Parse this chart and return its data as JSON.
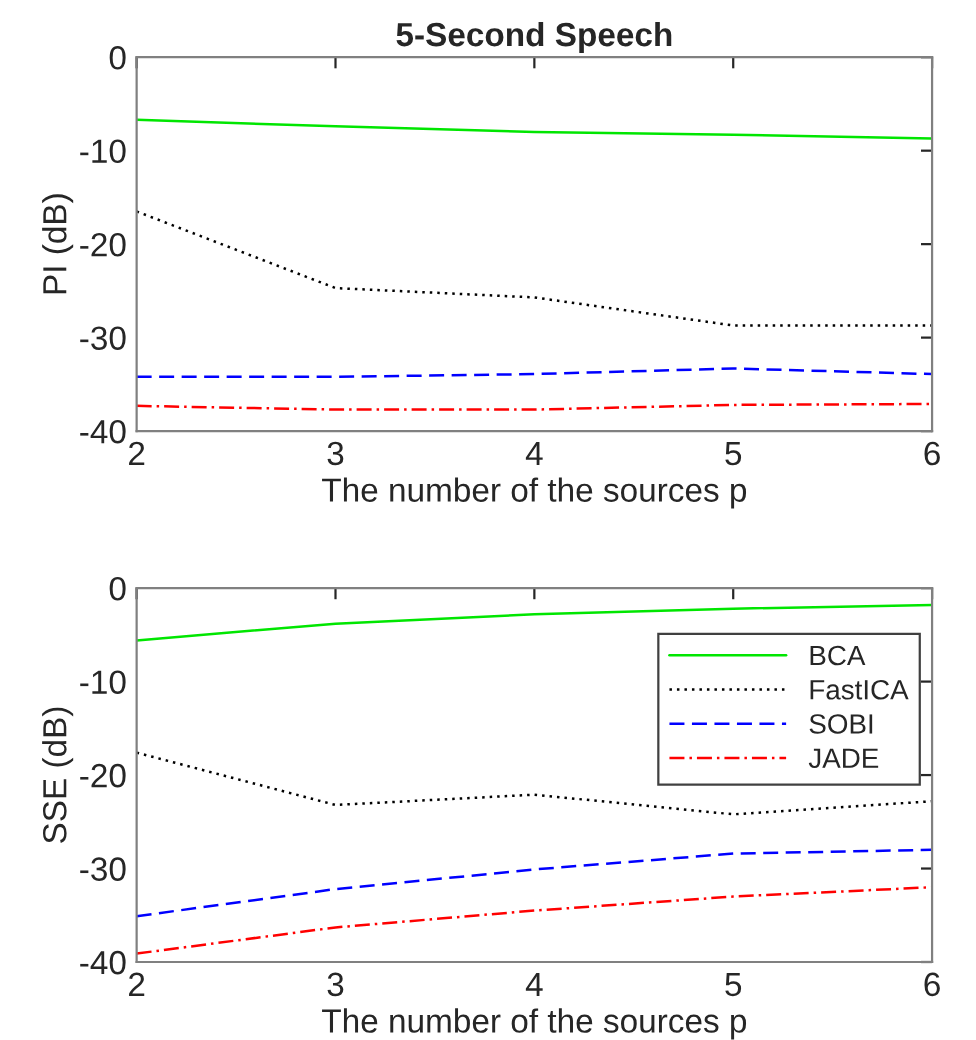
{
  "chart_data": [
    {
      "type": "line",
      "title": "5-Second Speech",
      "xlabel": "The number of the sources p",
      "ylabel": "PI (dB)",
      "x": [
        2,
        3,
        4,
        5,
        6
      ],
      "xlim": [
        2,
        6
      ],
      "xticks": [
        2,
        3,
        4,
        5,
        6
      ],
      "ylim": [
        -40,
        0
      ],
      "yticks": [
        -40,
        -30,
        -20,
        -10,
        0
      ],
      "grid": false,
      "legend": false,
      "marker": "none",
      "series": [
        {
          "color": "#00e600",
          "line_style": "solid",
          "values": [
            -6.7,
            -7.4,
            -8.0,
            -8.3,
            -8.7
          ]
        },
        {
          "color": "#000000",
          "line_style": "dotted",
          "values": [
            -16.5,
            -24.7,
            -25.7,
            -28.7,
            -28.7
          ]
        },
        {
          "color": "#0000ff",
          "line_style": "dashed",
          "values": [
            -34.2,
            -34.2,
            -33.9,
            -33.3,
            -33.9
          ]
        },
        {
          "color": "#ff0000",
          "line_style": "dashdot",
          "values": [
            -37.3,
            -37.7,
            -37.7,
            -37.2,
            -37.1
          ]
        }
      ]
    },
    {
      "type": "line",
      "xlabel": "The number of the sources p",
      "ylabel": "SSE (dB)",
      "x": [
        2,
        3,
        4,
        5,
        6
      ],
      "xlim": [
        2,
        6
      ],
      "xticks": [
        2,
        3,
        4,
        5,
        6
      ],
      "ylim": [
        -40,
        0
      ],
      "yticks": [
        -40,
        -30,
        -20,
        -10,
        0
      ],
      "grid": false,
      "legend": "top right",
      "marker": "none",
      "series": [
        {
          "name": "BCA",
          "color": "#00e600",
          "line_style": "solid",
          "values": [
            -5.6,
            -3.8,
            -2.8,
            -2.2,
            -1.8
          ]
        },
        {
          "name": "FastICA",
          "color": "#000000",
          "line_style": "dotted",
          "values": [
            -17.6,
            -23.2,
            -22.1,
            -24.2,
            -22.8
          ]
        },
        {
          "name": "SOBI",
          "color": "#0000ff",
          "line_style": "dashed",
          "values": [
            -35.1,
            -32.2,
            -30.1,
            -28.4,
            -28.0
          ]
        },
        {
          "name": "JADE",
          "color": "#ff0000",
          "line_style": "dashdot",
          "values": [
            -39.1,
            -36.3,
            -34.5,
            -33.0,
            -32.0
          ]
        }
      ]
    }
  ]
}
